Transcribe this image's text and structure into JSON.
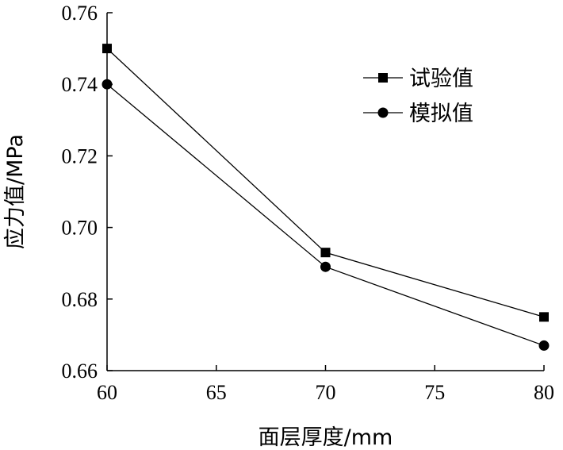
{
  "chart_data": {
    "type": "line",
    "title": "",
    "xlabel": "面层厚度/mm",
    "ylabel": "应力值/MPa",
    "xlim": [
      60,
      80
    ],
    "ylim": [
      0.66,
      0.76
    ],
    "xticks": [
      60,
      65,
      70,
      75,
      80
    ],
    "yticks": [
      0.66,
      0.68,
      0.7,
      0.72,
      0.74,
      0.76
    ],
    "xtick_labels": [
      "60",
      "65",
      "70",
      "75",
      "80"
    ],
    "ytick_labels": [
      "0.66",
      "0.68",
      "0.70",
      "0.72",
      "0.74",
      "0.76"
    ],
    "grid": false,
    "legend_position": "top-right",
    "x": [
      60,
      70,
      80
    ],
    "series": [
      {
        "name": "试验值",
        "marker": "square",
        "values": [
          0.75,
          0.693,
          0.675
        ]
      },
      {
        "name": "模拟值",
        "marker": "circle",
        "values": [
          0.74,
          0.689,
          0.667
        ]
      }
    ],
    "colors": {
      "line": "#000000",
      "marker": "#000000"
    }
  }
}
